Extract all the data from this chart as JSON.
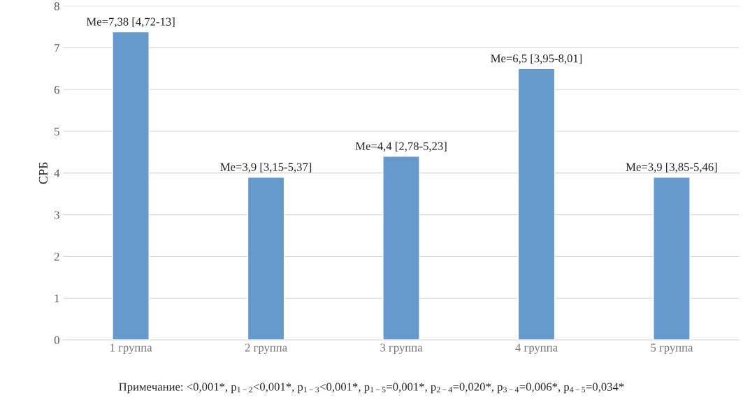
{
  "chart_data": {
    "type": "bar",
    "ylabel": "СРБ",
    "categories": [
      "1 группа",
      "2 группа",
      "3 группа",
      "4 группа",
      "5 группа"
    ],
    "values": [
      7.38,
      3.9,
      4.4,
      6.5,
      3.9
    ],
    "value_labels": [
      "Me=7,38 [4,72-13]",
      "Me=3,9 [3,15-5,37]",
      "Me=4,4 [2,78-5,23]",
      "Me=6,5 [3,95-8,01]",
      "Me=3,9 [3,85-5,46]"
    ],
    "color": "#6699cc",
    "ylim": [
      0,
      8
    ],
    "yticks": [
      0,
      1,
      2,
      3,
      4,
      5,
      6,
      7,
      8
    ],
    "grid": "y",
    "annotations": [
      "Примечание: <0,001*, p$_{1−2}$<0,001*, p$_{1−3}$<0,001*, p$_{1−5}$=0,001*, p$_{2−4}$=0,020*, p$_{3−4}$=0,006*, p$_{4−5}$=0,034*"
    ]
  }
}
